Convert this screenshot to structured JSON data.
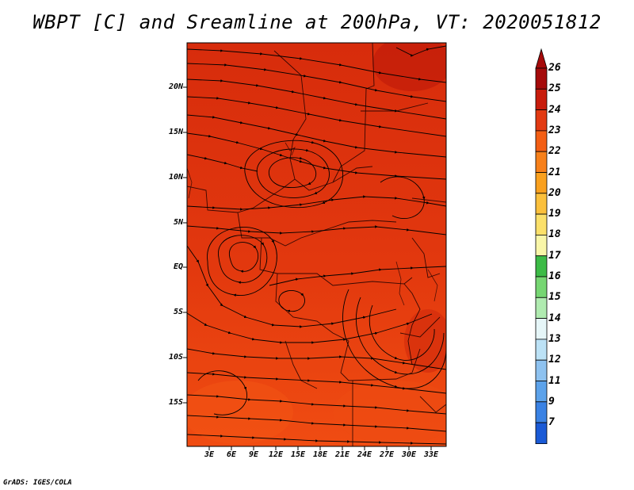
{
  "title": "WBPT [C] and Sreamline at 200hPa, VT: 2020051812",
  "credit": "GrADS: IGES/COLA",
  "map": {
    "lat_ticks": [
      "20N",
      "15N",
      "10N",
      "5N",
      "EQ",
      "5S",
      "10S",
      "15S"
    ],
    "lon_ticks": [
      "3E",
      "6E",
      "9E",
      "12E",
      "15E",
      "18E",
      "21E",
      "24E",
      "27E",
      "30E",
      "33E"
    ],
    "lon_range": [
      0,
      35
    ],
    "lat_range": [
      -20,
      24
    ],
    "field_colors": {
      "dominant": "#e03010",
      "north": "#d42a0c",
      "south": "#f04a12",
      "hot": "#c01c08"
    }
  },
  "colorbar": {
    "levels": [
      "26",
      "25",
      "24",
      "23",
      "22",
      "21",
      "20",
      "19",
      "18",
      "17",
      "16",
      "15",
      "14",
      "13",
      "12",
      "11",
      "9",
      "7"
    ],
    "colors": [
      "#a50a0a",
      "#c81c0c",
      "#e23a12",
      "#f35e14",
      "#f7801a",
      "#f9a01e",
      "#fbc03c",
      "#fbe06a",
      "#f9f6a8",
      "#3cbb46",
      "#76d672",
      "#b0ebb0",
      "#e6f6f8",
      "#bce2f6",
      "#8ec2f0",
      "#5ca2ea",
      "#3a82e4",
      "#1a5ad6"
    ],
    "top_arrow_color": "#a50a0a",
    "bottom_arrow_color": "#1a5ad6"
  }
}
